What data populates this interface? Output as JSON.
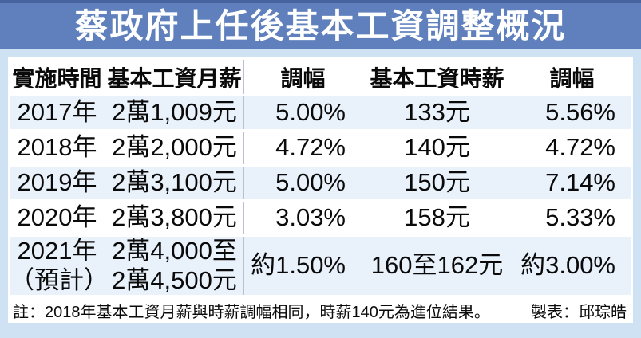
{
  "title": "蔡政府上任後基本工資調整概況",
  "colors": {
    "title_background": "#5f80bd",
    "top_strip": "#47639f",
    "page_background": "#cfe2f3",
    "shaded_row_background": "#e9f1fb",
    "plain_row_background": "#ffffff",
    "column_divider": "#b9c1cd",
    "title_text": "#ffffff",
    "body_text": "#0a0a0a"
  },
  "table": {
    "headers": [
      "實施時間",
      "基本工資月薪",
      "調幅",
      "基本工資時薪",
      "調幅"
    ],
    "column_keys": [
      "period",
      "monthly-wage",
      "monthly-change",
      "hourly-wage",
      "hourly-change"
    ],
    "column_align": [
      "center",
      "center",
      "right",
      "center",
      "right"
    ],
    "rows": [
      {
        "cells": [
          "2017年",
          "2萬1,009元",
          "5.00%",
          "133元",
          "5.56%"
        ]
      },
      {
        "cells": [
          "2018年",
          "2萬2,000元",
          "4.72%",
          "140元",
          "4.72%"
        ]
      },
      {
        "cells": [
          "2019年",
          "2萬3,100元",
          "5.00%",
          "150元",
          "7.14%"
        ]
      },
      {
        "cells": [
          "2020年",
          "2萬3,800元",
          "3.03%",
          "158元",
          "5.33%"
        ]
      },
      {
        "cells": [
          [
            "2021年",
            "（預計）"
          ],
          [
            "2萬4,000至",
            "2萬4,500元"
          ],
          "約1.50%",
          "160至162元",
          "約3.00%"
        ]
      }
    ]
  },
  "footer": {
    "note": "註：2018年基本工資月薪與時薪調幅相同，時薪140元為進位結果。",
    "credit": "製表：邱琮皓"
  },
  "chart_data": {
    "type": "table",
    "title": "蔡政府上任後基本工資調整概況",
    "columns": [
      "實施時間",
      "基本工資月薪",
      "調幅",
      "基本工資時薪",
      "調幅"
    ],
    "rows": [
      [
        "2017年",
        "2萬1,009元",
        "5.00%",
        "133元",
        "5.56%"
      ],
      [
        "2018年",
        "2萬2,000元",
        "4.72%",
        "140元",
        "4.72%"
      ],
      [
        "2019年",
        "2萬3,100元",
        "5.00%",
        "150元",
        "7.14%"
      ],
      [
        "2020年",
        "2萬3,800元",
        "3.03%",
        "158元",
        "5.33%"
      ],
      [
        "2021年（預計）",
        "2萬4,000至2萬4,500元",
        "約1.50%",
        "160至162元",
        "約3.00%"
      ]
    ],
    "note": "註：2018年基本工資月薪與時薪調幅相同，時薪140元為進位結果。",
    "credit": "製表：邱琮皓"
  }
}
